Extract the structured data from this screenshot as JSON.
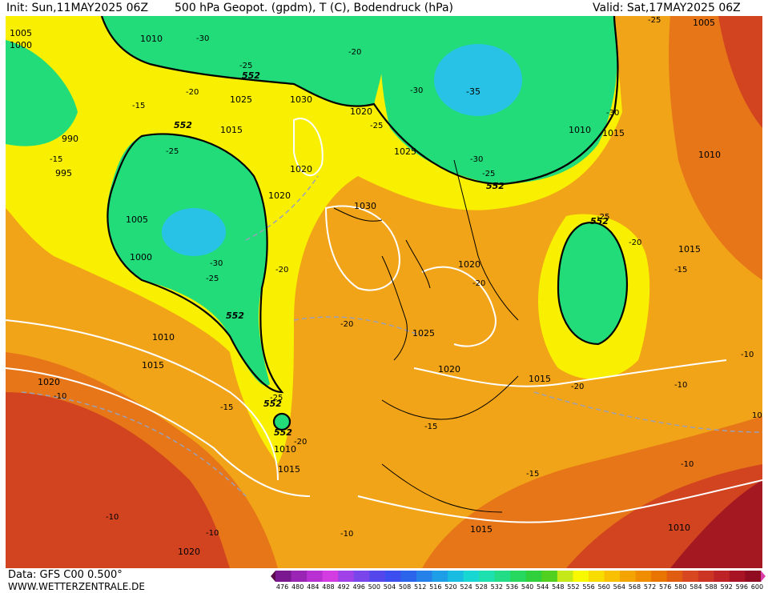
{
  "header": {
    "init": "Init: Sun,11MAY2025 06Z",
    "title": "500 hPa Geopot. (gpdm), T (C), Bodendruck (hPa)",
    "valid": "Valid: Sat,17MAY2025 06Z"
  },
  "footer": {
    "data_source": "Data: GFS C00 0.500°",
    "website": "WWW.WETTERZENTRALE.DE"
  },
  "legend": {
    "ticks": [
      "476",
      "480",
      "484",
      "488",
      "492",
      "496",
      "500",
      "504",
      "508",
      "512",
      "516",
      "520",
      "524",
      "528",
      "532",
      "536",
      "540",
      "544",
      "548",
      "552",
      "556",
      "560",
      "564",
      "568",
      "572",
      "576",
      "580",
      "584",
      "588",
      "592",
      "596",
      "600"
    ],
    "colors": [
      "#5a0a4a",
      "#7a1890",
      "#9a24b4",
      "#b830d2",
      "#d23ce0",
      "#a040e8",
      "#7a46ec",
      "#5448ec",
      "#3c4ef0",
      "#2c64ec",
      "#2680ea",
      "#1e9ee6",
      "#18bce0",
      "#18d6d2",
      "#1ee0ae",
      "#22dc86",
      "#26d85e",
      "#30d03c",
      "#52d020",
      "#c4e818",
      "#f8f800",
      "#f8dc00",
      "#f8c000",
      "#f4a400",
      "#f08c00",
      "#ea7400",
      "#e05c10",
      "#d84820",
      "#cc3426",
      "#bc2226",
      "#a81424",
      "#900c20",
      "#d83ca8"
    ]
  },
  "map": {
    "colors": {
      "sea_bg": "#f2a418",
      "green": "#22dc7a",
      "cyan": "#28c2e6",
      "yellow": "#f8f000",
      "orange": "#e67618",
      "red": "#d24420",
      "darkred": "#a41822"
    },
    "geopotential_label": "552",
    "isobar_labels": [
      "1005",
      "1000",
      "990",
      "995",
      "1010",
      "1015",
      "1025",
      "1020",
      "1030",
      "1000",
      "1005",
      "1010",
      "1015",
      "1020",
      "1025",
      "1030",
      "1020",
      "1020",
      "1025",
      "1010",
      "1015",
      "1010",
      "1015",
      "1020",
      "1015",
      "1010",
      "1015",
      "1020",
      "1010",
      "1005",
      "1015",
      "1020"
    ],
    "temp_labels": [
      "-30",
      "-25",
      "-20",
      "-15",
      "-15",
      "-25",
      "-20",
      "-30",
      "-25",
      "-30",
      "-25",
      "-20",
      "-25",
      "-20",
      "-30",
      "-20",
      "-35",
      "-30",
      "-25",
      "-30",
      "-25",
      "-25",
      "-20",
      "-20",
      "-15",
      "-15",
      "-20",
      "-15",
      "-20",
      "-15",
      "-15",
      "-10",
      "-10",
      "-10",
      "-10",
      "-10",
      "-10",
      "-10",
      "-15",
      "-25",
      "-20",
      "-15",
      "-10",
      "10"
    ]
  }
}
